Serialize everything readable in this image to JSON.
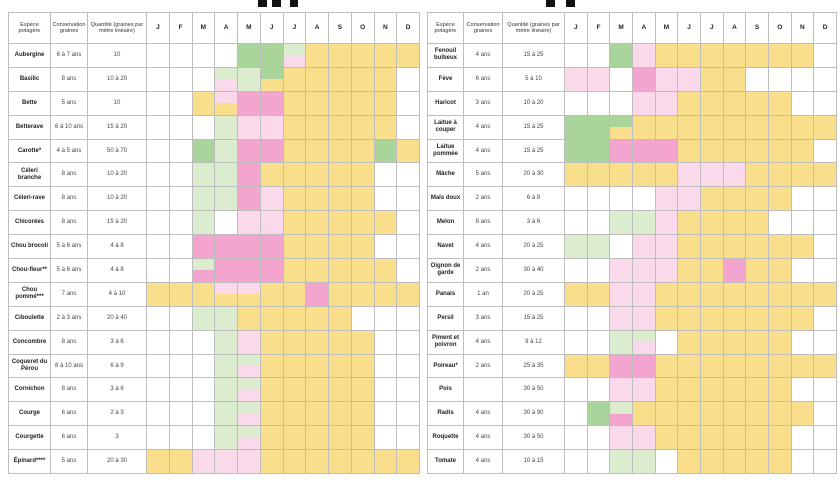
{
  "colors": {
    "sow": "#a9d59a",
    "sow_light": "#dcedcf",
    "plant": "#f3a5cf",
    "plant_light": "#f9d9ea",
    "harvest": "#f9df8c"
  },
  "headers": {
    "species": "Espèce potagère",
    "conservation": "Conservation graines",
    "quantity": "Quantité (graines par mètre linéaire)"
  },
  "months": [
    "J",
    "F",
    "M",
    "A",
    "M",
    "J",
    "J",
    "A",
    "S",
    "O",
    "N",
    "D"
  ],
  "left_rows": [
    {
      "name": "Aubergine",
      "conservation": "6 à 7 ans",
      "quantity": "10",
      "cells": "....GGlYYYYY"
    },
    {
      "name": "Basilic",
      "conservation": "8 ans",
      "quantity": "10 à 20",
      "cells": "...lgHYYYYY."
    },
    {
      "name": "Bette",
      "conservation": "5 ans",
      "quantity": "10",
      "cells": "..YvPPYYYYY."
    },
    {
      "name": "Betterave",
      "conservation": "6 à 10 ans",
      "quantity": "15 à 20",
      "cells": "...gppYYYYY."
    },
    {
      "name": "Carotte*",
      "conservation": "4 à 5 ans",
      "quantity": "50 à 70",
      "cells": "..GgPPYYYYGY"
    },
    {
      "name": "Céleri branche",
      "conservation": "8 ans",
      "quantity": "10 à 20",
      "cells": "..ggPYYYYY.."
    },
    {
      "name": "Céleri-rave",
      "conservation": "8 ans",
      "quantity": "10 à 20",
      "cells": "..ggPpYYYY.."
    },
    {
      "name": "Chicorées",
      "conservation": "8 ans",
      "quantity": "15 à 20",
      "cells": "..g.ppYYYYY."
    },
    {
      "name": "Chou brocoli",
      "conservation": "5 à 6 ans",
      "quantity": "4 à 8",
      "cells": "..PPPPYYYY.."
    },
    {
      "name": "Chou-fleur**",
      "conservation": "5 à 6 ans",
      "quantity": "4 à 8",
      "cells": "..uPPPYYYYY."
    },
    {
      "name": "Chou pommé***",
      "conservation": "7 ans",
      "quantity": "4 à 10",
      "cells": "YYYvvYYPYYYY"
    },
    {
      "name": "Ciboulette",
      "conservation": "2 à 3 ans",
      "quantity": "20 à 40",
      "cells": "..ggYYYYY..."
    },
    {
      "name": "Concombre",
      "conservation": "8 ans",
      "quantity": "3 à 6",
      "cells": "...gpYYYYY.."
    },
    {
      "name": "Coqueret du Pérou",
      "conservation": "8 à 10 ans",
      "quantity": "6 à 9",
      "cells": "...glYYYYY.."
    },
    {
      "name": "Cornichon",
      "conservation": "8 ans",
      "quantity": "3 à 6",
      "cells": "...glYYYYY.."
    },
    {
      "name": "Courge",
      "conservation": "6 ans",
      "quantity": "2 à 3",
      "cells": "...glYYYYY.."
    },
    {
      "name": "Courgette",
      "conservation": "6 ans",
      "quantity": "3",
      "cells": "...glYYYYY.."
    },
    {
      "name": "Épinard****",
      "conservation": "5 ans",
      "quantity": "20 à 30",
      "cells": "YYpppYYYYYYY"
    }
  ],
  "right_rows": [
    {
      "name": "Fenouil bulbeux",
      "conservation": "4 ans",
      "quantity": "15 à 25",
      "cells": "..GpYYYYYYY."
    },
    {
      "name": "Fève",
      "conservation": "6 ans",
      "quantity": "5 à 10",
      "cells": "pp.PppYY...."
    },
    {
      "name": "Haricot",
      "conservation": "3 ans",
      "quantity": "10 à 20",
      "cells": "...ppYYYYY.."
    },
    {
      "name": "Laitue à couper",
      "conservation": "4 ans",
      "quantity": "15 à 25",
      "cells": "GGHYYYYYYYYY"
    },
    {
      "name": "Laitue pommée",
      "conservation": "4 ans",
      "quantity": "15 à 25",
      "cells": "GGPPPYYYYYY."
    },
    {
      "name": "Mâche",
      "conservation": "5 ans",
      "quantity": "20 à 30",
      "cells": "YYYYYpppYYYY"
    },
    {
      "name": "Maïs doux",
      "conservation": "2 ans",
      "quantity": "6 à 8",
      "cells": "....ppYYYY.."
    },
    {
      "name": "Melon",
      "conservation": "8 ans",
      "quantity": "3 à 6",
      "cells": "..ggpYYYY..."
    },
    {
      "name": "Navet",
      "conservation": "4 ans",
      "quantity": "20 à 25",
      "cells": "gg.ppYYYYYY."
    },
    {
      "name": "Oignon de garde",
      "conservation": "2 ans",
      "quantity": "30 à 40",
      "cells": "..pppYYPYY.."
    },
    {
      "name": "Panais",
      "conservation": "1 an",
      "quantity": "20 à 25",
      "cells": "YYppYYYYYYYY"
    },
    {
      "name": "Persil",
      "conservation": "3 ans",
      "quantity": "15 à 25",
      "cells": "..ppYYYYYYY."
    },
    {
      "name": "Piment et poivron",
      "conservation": "4 ans",
      "quantity": "9 à 12",
      "cells": "..gl.YYYYY.."
    },
    {
      "name": "Poireau*",
      "conservation": "2 ans",
      "quantity": "25 à 35",
      "cells": "YYPPYYYYYYYY"
    },
    {
      "name": "Pois",
      "conservation": "",
      "quantity": "30 à 50",
      "cells": "..ppYYYYYY.."
    },
    {
      "name": "Radis",
      "conservation": "4 ans",
      "quantity": "30 à 90",
      "cells": ".GuYYYYYYYY."
    },
    {
      "name": "Roquette",
      "conservation": "4 ans",
      "quantity": "30 à 50",
      "cells": "..ppYYYYYY.."
    },
    {
      "name": "Tomate",
      "conservation": "4 ans",
      "quantity": "10 à 15",
      "cells": "..gg.YYYYY.."
    }
  ]
}
